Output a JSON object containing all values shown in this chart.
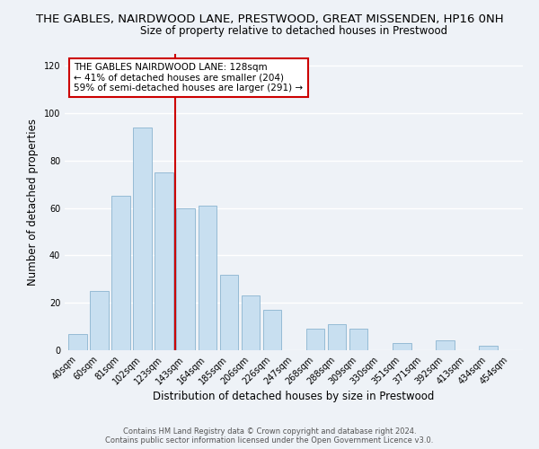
{
  "title": "THE GABLES, NAIRDWOOD LANE, PRESTWOOD, GREAT MISSENDEN, HP16 0NH",
  "subtitle": "Size of property relative to detached houses in Prestwood",
  "xlabel": "Distribution of detached houses by size in Prestwood",
  "ylabel": "Number of detached properties",
  "bar_color": "#c8dff0",
  "bar_edge_color": "#8ab4d0",
  "categories": [
    "40sqm",
    "60sqm",
    "81sqm",
    "102sqm",
    "123sqm",
    "143sqm",
    "164sqm",
    "185sqm",
    "206sqm",
    "226sqm",
    "247sqm",
    "268sqm",
    "288sqm",
    "309sqm",
    "330sqm",
    "351sqm",
    "371sqm",
    "392sqm",
    "413sqm",
    "434sqm",
    "454sqm"
  ],
  "values": [
    7,
    25,
    65,
    94,
    75,
    60,
    61,
    32,
    23,
    17,
    0,
    9,
    11,
    9,
    0,
    3,
    0,
    4,
    0,
    2,
    0
  ],
  "ylim": [
    0,
    125
  ],
  "yticks": [
    0,
    20,
    40,
    60,
    80,
    100,
    120
  ],
  "marker_label_line1": "THE GABLES NAIRDWOOD LANE: 128sqm",
  "marker_label_line2": "← 41% of detached houses are smaller (204)",
  "marker_label_line3": "59% of semi-detached houses are larger (291) →",
  "footer_line1": "Contains HM Land Registry data © Crown copyright and database right 2024.",
  "footer_line2": "Contains public sector information licensed under the Open Government Licence v3.0.",
  "background_color": "#eef2f7",
  "grid_color": "#ffffff",
  "annotation_box_color": "#ffffff",
  "annotation_border_color": "#cc0000",
  "red_line_color": "#cc0000",
  "title_fontsize": 9.5,
  "subtitle_fontsize": 8.5,
  "axis_label_fontsize": 8.5,
  "tick_fontsize": 7,
  "annotation_fontsize": 7.5,
  "footer_fontsize": 6
}
